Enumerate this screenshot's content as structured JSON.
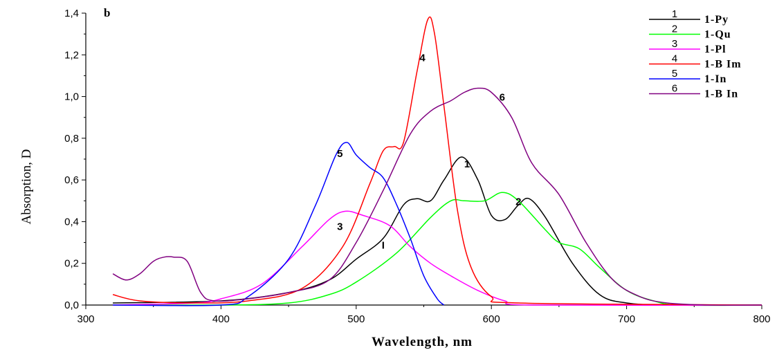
{
  "chart_data": {
    "type": "line",
    "panel_label": "b",
    "xlabel": "Wavelength, nm",
    "ylabel": "Absorption, D",
    "xlim": [
      300,
      800
    ],
    "ylim": [
      0,
      1.4
    ],
    "x_ticks": [
      "300",
      "400",
      "500",
      "600",
      "700",
      "800"
    ],
    "y_ticks": [
      "0,0",
      "0,2",
      "0,4",
      "0,6",
      "0,8",
      "1,0",
      "1,2",
      "1,4"
    ],
    "grid": false,
    "legend_position": "top-right",
    "series": [
      {
        "number": "1",
        "name": "1-Py",
        "color": "#000000",
        "points": [
          [
            320,
            0.01
          ],
          [
            400,
            0.02
          ],
          [
            450,
            0.06
          ],
          [
            480,
            0.12
          ],
          [
            500,
            0.22
          ],
          [
            520,
            0.32
          ],
          [
            535,
            0.48
          ],
          [
            545,
            0.51
          ],
          [
            555,
            0.5
          ],
          [
            565,
            0.6
          ],
          [
            578,
            0.71
          ],
          [
            590,
            0.6
          ],
          [
            600,
            0.43
          ],
          [
            610,
            0.41
          ],
          [
            620,
            0.48
          ],
          [
            628,
            0.51
          ],
          [
            640,
            0.42
          ],
          [
            660,
            0.2
          ],
          [
            680,
            0.05
          ],
          [
            700,
            0.01
          ],
          [
            730,
            0.0
          ],
          [
            800,
            0.0
          ]
        ],
        "label_at": [
          582,
          0.66
        ]
      },
      {
        "number": "2",
        "name": "1-Qu",
        "color": "#00ff00",
        "points": [
          [
            320,
            0.0
          ],
          [
            400,
            0.0
          ],
          [
            450,
            0.01
          ],
          [
            480,
            0.05
          ],
          [
            500,
            0.11
          ],
          [
            530,
            0.25
          ],
          [
            555,
            0.42
          ],
          [
            570,
            0.5
          ],
          [
            580,
            0.5
          ],
          [
            595,
            0.5
          ],
          [
            608,
            0.54
          ],
          [
            620,
            0.5
          ],
          [
            640,
            0.36
          ],
          [
            650,
            0.3
          ],
          [
            665,
            0.27
          ],
          [
            680,
            0.18
          ],
          [
            700,
            0.07
          ],
          [
            720,
            0.02
          ],
          [
            740,
            0.0
          ],
          [
            800,
            0.0
          ]
        ],
        "label_at": [
          620,
          0.48
        ]
      },
      {
        "number": "3",
        "name": "1-Pl",
        "color": "#ff00ff",
        "points": [
          [
            320,
            0.0
          ],
          [
            380,
            0.01
          ],
          [
            400,
            0.03
          ],
          [
            430,
            0.1
          ],
          [
            460,
            0.28
          ],
          [
            480,
            0.41
          ],
          [
            492,
            0.45
          ],
          [
            505,
            0.43
          ],
          [
            525,
            0.38
          ],
          [
            540,
            0.28
          ],
          [
            555,
            0.2
          ],
          [
            570,
            0.14
          ],
          [
            590,
            0.07
          ],
          [
            610,
            0.02
          ],
          [
            630,
            0.0
          ],
          [
            800,
            0.0
          ]
        ],
        "label_at": [
          488,
          0.36
        ]
      },
      {
        "number": "4",
        "name": "1-B Im",
        "color": "#ff0000",
        "points": [
          [
            320,
            0.05
          ],
          [
            340,
            0.02
          ],
          [
            380,
            0.01
          ],
          [
            420,
            0.02
          ],
          [
            460,
            0.08
          ],
          [
            490,
            0.28
          ],
          [
            510,
            0.58
          ],
          [
            520,
            0.74
          ],
          [
            528,
            0.76
          ],
          [
            535,
            0.78
          ],
          [
            545,
            1.12
          ],
          [
            553,
            1.37
          ],
          [
            558,
            1.3
          ],
          [
            565,
            0.95
          ],
          [
            575,
            0.45
          ],
          [
            585,
            0.18
          ],
          [
            600,
            0.04
          ],
          [
            620,
            0.01
          ],
          [
            800,
            0.0
          ]
        ],
        "label_at": [
          549,
          1.17
        ]
      },
      {
        "number": "5",
        "name": "1-In",
        "color": "#0000ff",
        "points": [
          [
            320,
            0.0
          ],
          [
            400,
            0.0
          ],
          [
            420,
            0.04
          ],
          [
            450,
            0.22
          ],
          [
            470,
            0.48
          ],
          [
            485,
            0.72
          ],
          [
            493,
            0.78
          ],
          [
            500,
            0.72
          ],
          [
            510,
            0.66
          ],
          [
            520,
            0.61
          ],
          [
            530,
            0.48
          ],
          [
            540,
            0.32
          ],
          [
            550,
            0.14
          ],
          [
            560,
            0.03
          ],
          [
            565,
            0.0
          ]
        ],
        "label_at": [
          488,
          0.71
        ]
      },
      {
        "number": "6",
        "name": "1-B In",
        "color": "#800080",
        "points": [
          [
            320,
            0.15
          ],
          [
            330,
            0.12
          ],
          [
            340,
            0.15
          ],
          [
            350,
            0.21
          ],
          [
            358,
            0.23
          ],
          [
            365,
            0.23
          ],
          [
            375,
            0.21
          ],
          [
            385,
            0.06
          ],
          [
            395,
            0.02
          ],
          [
            420,
            0.03
          ],
          [
            450,
            0.06
          ],
          [
            480,
            0.12
          ],
          [
            500,
            0.3
          ],
          [
            520,
            0.55
          ],
          [
            540,
            0.82
          ],
          [
            555,
            0.93
          ],
          [
            570,
            0.98
          ],
          [
            580,
            1.02
          ],
          [
            590,
            1.04
          ],
          [
            600,
            1.02
          ],
          [
            615,
            0.9
          ],
          [
            630,
            0.68
          ],
          [
            650,
            0.53
          ],
          [
            670,
            0.3
          ],
          [
            690,
            0.12
          ],
          [
            710,
            0.04
          ],
          [
            730,
            0.01
          ],
          [
            760,
            0.0
          ],
          [
            800,
            0.0
          ]
        ],
        "label_at": [
          608,
          0.98
        ]
      }
    ],
    "annotations": [
      {
        "text": "I",
        "x": 520,
        "y": 0.27
      }
    ]
  }
}
